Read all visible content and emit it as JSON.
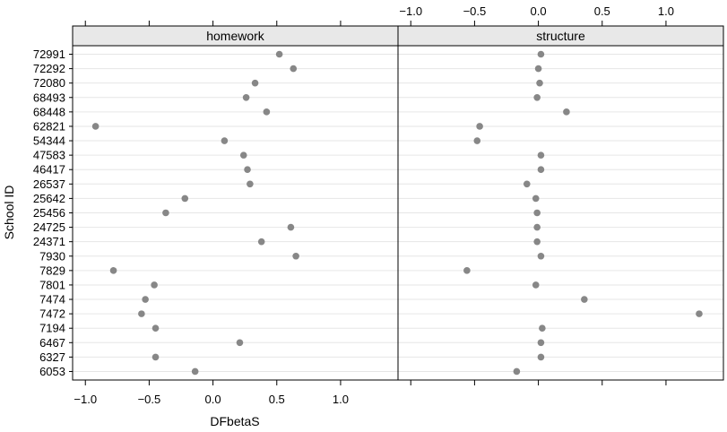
{
  "chart_data": {
    "type": "scatter",
    "title": "",
    "xlabel": "DFbetaS",
    "ylabel": "School ID",
    "xlim": [
      -1.1,
      1.45
    ],
    "x_ticks": [
      -1.0,
      -0.5,
      0.0,
      0.5,
      1.0
    ],
    "x_tick_labels": [
      "−1.0",
      "−0.5",
      "0.0",
      "0.5",
      "1.0"
    ],
    "grid": true,
    "colors": {
      "point": "#878787",
      "strip": "#e8e8e8",
      "grid": "#e6e6e6",
      "frame": "#000000"
    },
    "categories": [
      "72991",
      "72292",
      "72080",
      "68493",
      "68448",
      "62821",
      "54344",
      "47583",
      "46417",
      "26537",
      "25642",
      "25456",
      "24725",
      "24371",
      "7930",
      "7829",
      "7801",
      "7474",
      "7472",
      "7194",
      "6467",
      "6327",
      "6053"
    ],
    "panels": [
      {
        "name": "homework",
        "values": [
          0.52,
          0.63,
          0.33,
          0.26,
          0.42,
          -0.92,
          0.09,
          0.24,
          0.27,
          0.29,
          -0.22,
          -0.37,
          0.61,
          0.38,
          0.65,
          -0.78,
          -0.46,
          -0.53,
          -0.56,
          -0.45,
          0.21,
          -0.45,
          -0.14
        ]
      },
      {
        "name": "structure",
        "values": [
          0.02,
          0.0,
          0.01,
          -0.01,
          0.22,
          -0.46,
          -0.48,
          0.02,
          0.02,
          -0.09,
          -0.02,
          -0.01,
          -0.01,
          -0.01,
          0.02,
          -0.56,
          -0.02,
          0.36,
          1.26,
          0.03,
          0.02,
          0.02,
          -0.17
        ]
      }
    ]
  }
}
